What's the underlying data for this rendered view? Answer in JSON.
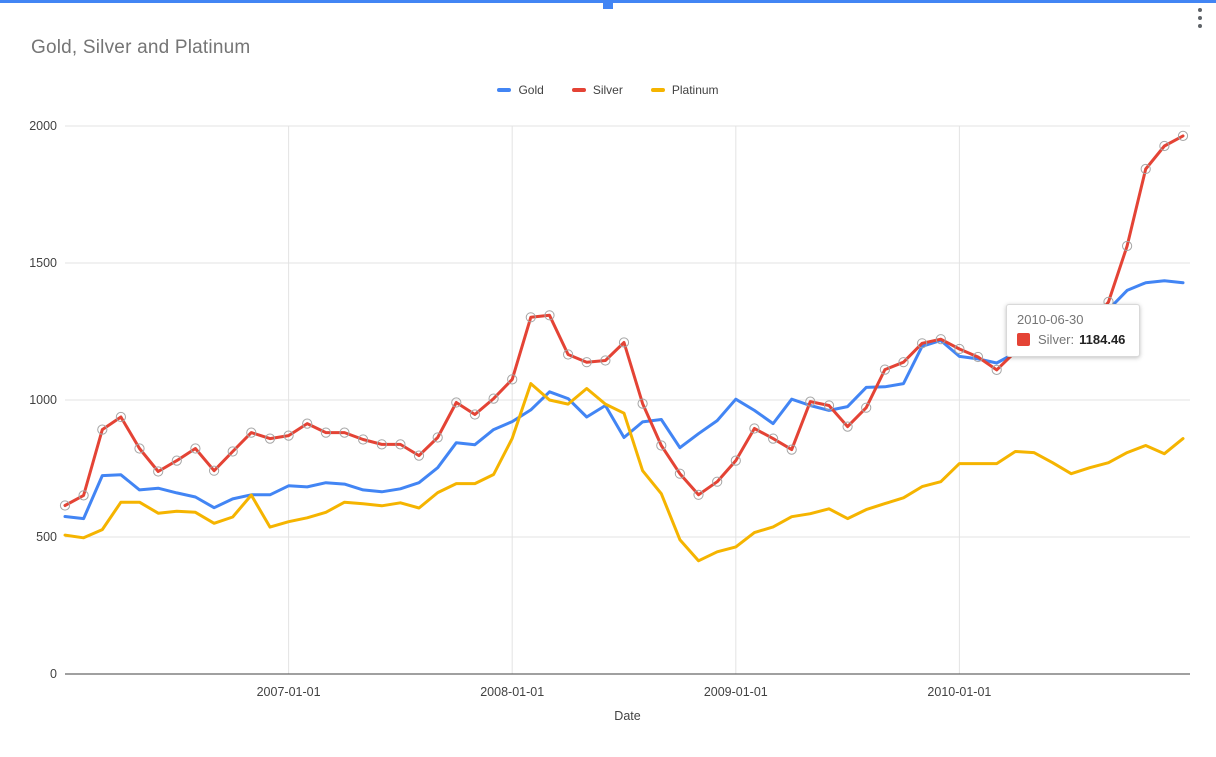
{
  "chart": {
    "title": "Gold, Silver and Platinum"
  },
  "menu": {
    "more_icon": "more-vert"
  },
  "tooltip": {
    "date": "2010-06-30",
    "series_label": "Silver:",
    "value": "1184.46",
    "series_index": 1
  },
  "chart_data": {
    "type": "line",
    "title": "Gold, Silver and Platinum",
    "xlabel": "Date",
    "ylabel": "",
    "ylim": [
      0,
      2000
    ],
    "grid": true,
    "legend_position": "top",
    "y_ticks": [
      0,
      500,
      1000,
      1500,
      2000
    ],
    "x_gridlines": [
      {
        "label": "2007-01-01",
        "index": 12
      },
      {
        "label": "2008-01-01",
        "index": 24
      },
      {
        "label": "2009-01-01",
        "index": 36
      },
      {
        "label": "2010-01-01",
        "index": 48
      }
    ],
    "x": [
      "2005-12-31",
      "2006-01-31",
      "2006-02-28",
      "2006-03-31",
      "2006-04-30",
      "2006-05-31",
      "2006-06-30",
      "2006-07-31",
      "2006-08-31",
      "2006-09-30",
      "2006-10-31",
      "2006-11-30",
      "2006-12-31",
      "2007-01-31",
      "2007-02-28",
      "2007-03-31",
      "2007-04-30",
      "2007-05-31",
      "2007-06-30",
      "2007-07-31",
      "2007-08-31",
      "2007-09-30",
      "2007-10-31",
      "2007-11-30",
      "2007-12-31",
      "2008-01-31",
      "2008-02-29",
      "2008-03-31",
      "2008-04-30",
      "2008-05-31",
      "2008-06-30",
      "2008-07-31",
      "2008-08-31",
      "2008-09-30",
      "2008-10-31",
      "2008-11-30",
      "2008-12-31",
      "2009-01-31",
      "2009-02-28",
      "2009-03-31",
      "2009-04-30",
      "2009-05-31",
      "2009-06-30",
      "2009-07-31",
      "2009-08-31",
      "2009-09-30",
      "2009-10-31",
      "2009-11-30",
      "2009-12-31",
      "2010-01-31",
      "2010-02-28",
      "2010-03-31",
      "2010-04-30",
      "2010-05-31",
      "2010-06-30",
      "2010-07-31",
      "2010-08-31",
      "2010-09-30",
      "2010-10-31",
      "2010-11-30",
      "2010-12-31"
    ],
    "series": [
      {
        "name": "Gold",
        "color": "#4285f4",
        "marker": "none",
        "values": [
          575,
          567,
          724,
          727,
          672,
          678,
          661,
          646,
          607,
          639,
          654,
          654,
          687,
          683,
          698,
          693,
          672,
          665,
          676,
          698,
          753,
          844,
          837,
          892,
          921,
          964,
          1030,
          1005,
          938,
          980,
          863,
          920,
          929,
          826,
          877,
          925,
          1003,
          962,
          914,
          1003,
          980,
          962,
          976,
          1046,
          1048,
          1060,
          1196,
          1217,
          1159,
          1150,
          1135,
          1172,
          1200,
          1185,
          1190,
          1220,
          1330,
          1400,
          1428,
          1435,
          1428
        ]
      },
      {
        "name": "Silver",
        "color": "#e44335",
        "marker": "circle",
        "values": [
          615,
          652,
          892,
          938,
          823,
          739,
          779,
          823,
          742,
          812,
          881,
          859,
          870,
          914,
          881,
          881,
          856,
          838,
          838,
          797,
          863,
          991,
          947,
          1005,
          1075,
          1302,
          1309,
          1166,
          1138,
          1144,
          1210,
          987,
          834,
          731,
          654,
          702,
          779,
          896,
          859,
          819,
          994,
          980,
          903,
          972,
          1111,
          1138,
          1207,
          1222,
          1186,
          1157,
          1110,
          1176,
          1205,
          1195,
          1184.46,
          1270,
          1358,
          1562,
          1843,
          1927,
          1964
        ]
      },
      {
        "name": "Platinum",
        "color": "#f5b400",
        "marker": "none",
        "values": [
          507,
          497,
          527,
          627,
          627,
          587,
          594,
          590,
          550,
          573,
          653,
          536,
          556,
          570,
          590,
          627,
          621,
          614,
          625,
          606,
          662,
          695,
          695,
          728,
          860,
          1060,
          1000,
          985,
          1042,
          985,
          952,
          742,
          658,
          490,
          413,
          446,
          464,
          516,
          537,
          574,
          585,
          603,
          567,
          600,
          622,
          643,
          684,
          702,
          768,
          768,
          768,
          812,
          808,
          771,
          731,
          753,
          771,
          808,
          834,
          804,
          859
        ]
      }
    ],
    "active_point": {
      "series_index": 1,
      "index": 54
    }
  }
}
